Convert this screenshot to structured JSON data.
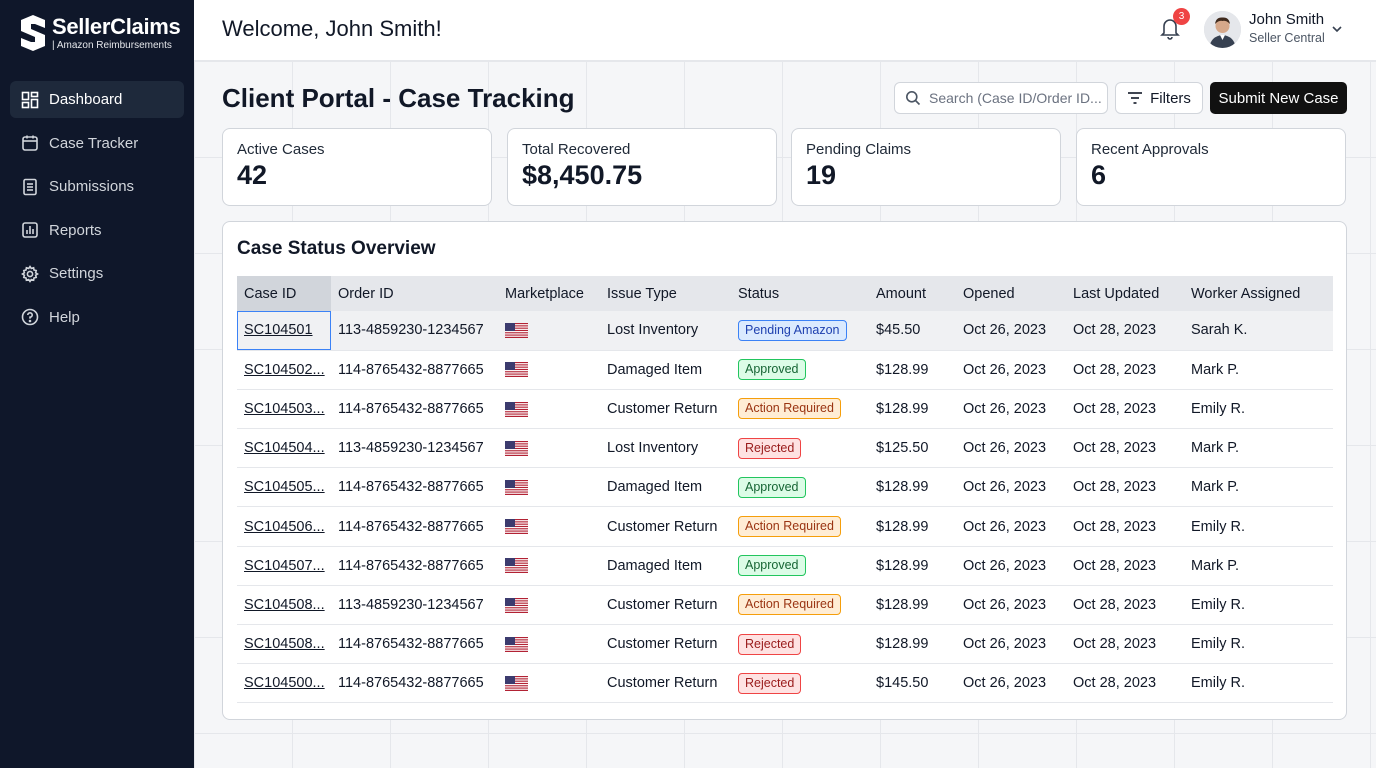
{
  "brand": {
    "name": "SellerClaims",
    "tagline": "| Amazon Reimbursements"
  },
  "sidebar": {
    "items": [
      {
        "label": "Dashboard",
        "icon": "dashboard-icon",
        "active": true
      },
      {
        "label": "Case Tracker",
        "icon": "calendar-icon",
        "active": false
      },
      {
        "label": "Submissions",
        "icon": "document-icon",
        "active": false
      },
      {
        "label": "Reports",
        "icon": "report-chart-icon",
        "active": false
      },
      {
        "label": "Settings",
        "icon": "gear-icon",
        "active": false
      },
      {
        "label": "Help",
        "icon": "help-icon",
        "active": false
      }
    ]
  },
  "header": {
    "welcome": "Welcome, John Smith!",
    "notifications_count": "3",
    "user_name": "John Smith",
    "user_role": "Seller Central"
  },
  "main": {
    "title": "Client Portal - Case Tracking",
    "search_placeholder": "Search (Case ID/Order ID...",
    "filters_label": "Filters",
    "submit_label": "Submit New Case"
  },
  "stats": [
    {
      "label": "Active Cases",
      "value": "42"
    },
    {
      "label": "Total Recovered",
      "value": "$8,450.75"
    },
    {
      "label": "Pending Claims",
      "value": "19"
    },
    {
      "label": "Recent Approvals",
      "value": "6"
    }
  ],
  "table": {
    "title": "Case Status Overview",
    "columns": [
      "Case ID",
      "Order ID",
      "Marketplace",
      "Issue Type",
      "Status",
      "Amount",
      "Opened",
      "Last Updated",
      "Worker Assigned"
    ],
    "rows": [
      {
        "case_id": "SC104501",
        "order_id": "113-4859230-1234567",
        "marketplace": "US",
        "issue": "Lost Inventory",
        "status": "Pending Amazon",
        "status_type": "pending",
        "amount": "$45.50",
        "opened": "Oct 26, 2023",
        "updated": "Oct 28, 2023",
        "worker": "Sarah K."
      },
      {
        "case_id": "SC104502...",
        "order_id": "114-8765432-8877665",
        "marketplace": "US",
        "issue": "Damaged Item",
        "status": "Approved",
        "status_type": "approved",
        "amount": "$128.99",
        "opened": "Oct 26, 2023",
        "updated": "Oct 28, 2023",
        "worker": "Mark P."
      },
      {
        "case_id": "SC104503...",
        "order_id": "114-8765432-8877665",
        "marketplace": "US",
        "issue": "Customer Return",
        "status": "Action Required",
        "status_type": "action",
        "amount": "$128.99",
        "opened": "Oct 26, 2023",
        "updated": "Oct 28, 2023",
        "worker": "Emily R."
      },
      {
        "case_id": "SC104504...",
        "order_id": "113-4859230-1234567",
        "marketplace": "US",
        "issue": "Lost Inventory",
        "status": "Rejected",
        "status_type": "rejected",
        "amount": "$125.50",
        "opened": "Oct 26, 2023",
        "updated": "Oct 28, 2023",
        "worker": "Mark P."
      },
      {
        "case_id": "SC104505...",
        "order_id": "114-8765432-8877665",
        "marketplace": "US",
        "issue": "Damaged Item",
        "status": "Approved",
        "status_type": "approved",
        "amount": "$128.99",
        "opened": "Oct 26, 2023",
        "updated": "Oct 28, 2023",
        "worker": "Mark P."
      },
      {
        "case_id": "SC104506...",
        "order_id": "114-8765432-8877665",
        "marketplace": "US",
        "issue": "Customer Return",
        "status": "Action Required",
        "status_type": "action",
        "amount": "$128.99",
        "opened": "Oct 26, 2023",
        "updated": "Oct 28, 2023",
        "worker": "Emily R."
      },
      {
        "case_id": "SC104507...",
        "order_id": "114-8765432-8877665",
        "marketplace": "US",
        "issue": "Damaged Item",
        "status": "Approved",
        "status_type": "approved",
        "amount": "$128.99",
        "opened": "Oct 26, 2023",
        "updated": "Oct 28, 2023",
        "worker": "Mark P."
      },
      {
        "case_id": "SC104508...",
        "order_id": "113-4859230-1234567",
        "marketplace": "US",
        "issue": "Customer Return",
        "status": "Action Required",
        "status_type": "action",
        "amount": "$128.99",
        "opened": "Oct 26, 2023",
        "updated": "Oct 28, 2023",
        "worker": "Emily R."
      },
      {
        "case_id": "SC104508...",
        "order_id": "114-8765432-8877665",
        "marketplace": "US",
        "issue": "Customer Return",
        "status": "Rejected",
        "status_type": "rejected",
        "amount": "$128.99",
        "opened": "Oct 26, 2023",
        "updated": "Oct 28, 2023",
        "worker": "Emily R."
      },
      {
        "case_id": "SC104500...",
        "order_id": "114-8765432-8877665",
        "marketplace": "US",
        "issue": "Customer Return",
        "status": "Rejected",
        "status_type": "rejected",
        "amount": "$145.50",
        "opened": "Oct 26, 2023",
        "updated": "Oct 28, 2023",
        "worker": "Emily R."
      }
    ]
  },
  "colors": {
    "sidebar_bg": "#0f172a",
    "primary_button": "#111111",
    "notification_badge": "#ef4444"
  }
}
